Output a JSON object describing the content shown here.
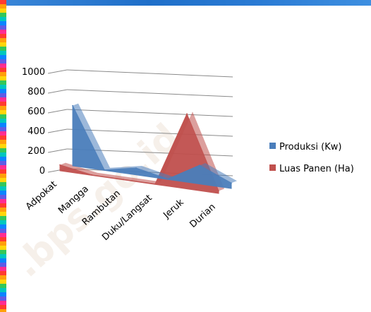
{
  "chart_data": {
    "type": "area",
    "style": "3d",
    "categories": [
      "Adpokat",
      "Mangga",
      "Rambutan",
      "Duku/Langsat",
      "Jeruk",
      "Durian"
    ],
    "series": [
      {
        "name": "Produksi (Kw)",
        "color": "#4a7ebb",
        "values": [
          610,
          5,
          70,
          5,
          190,
          55
        ]
      },
      {
        "name": "Luas Panen (Ha)",
        "color": "#c0504d",
        "values": [
          60,
          5,
          5,
          5,
          760,
          25
        ]
      }
    ],
    "y_ticks": [
      "0",
      "200",
      "400",
      "600",
      "800",
      "1000"
    ],
    "ylim": [
      0,
      1000
    ],
    "grid": true,
    "legend_position": "right"
  },
  "watermark": ".bps.go.id"
}
